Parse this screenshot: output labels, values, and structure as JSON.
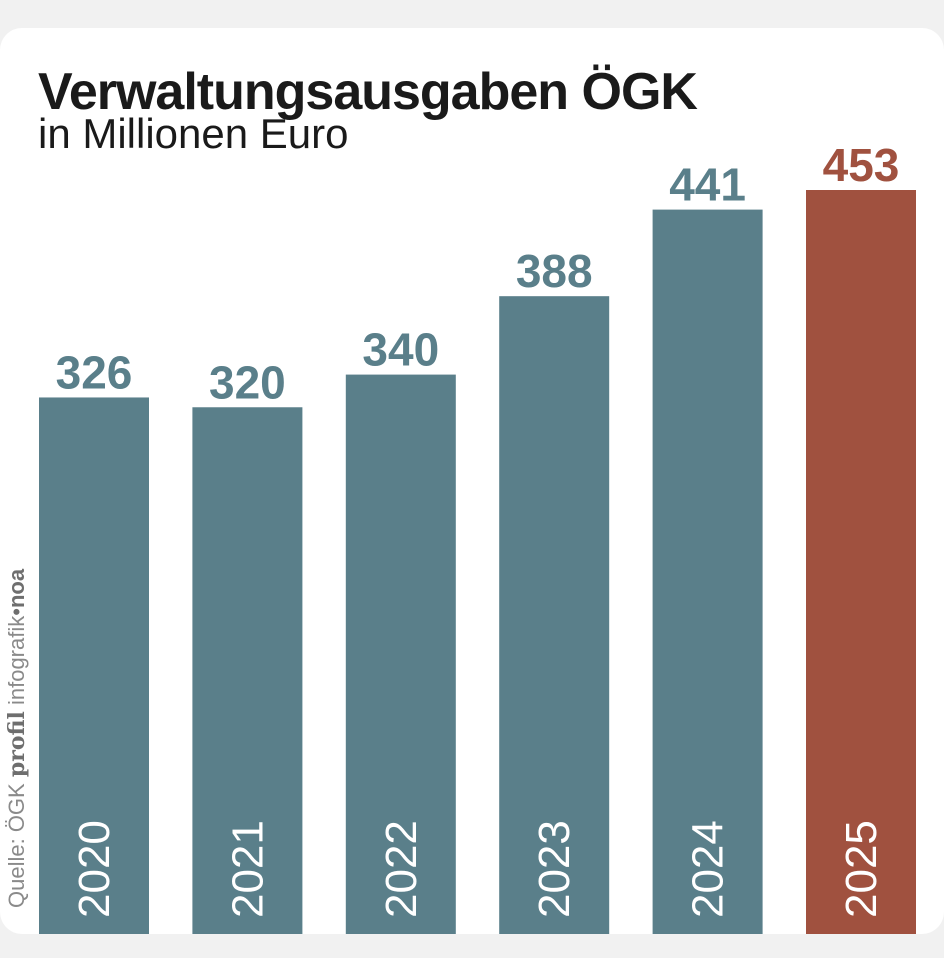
{
  "header": {
    "title": "Verwaltungsausgaben ÖGK",
    "subtitle": "in Millionen Euro"
  },
  "credit": {
    "source": "Quelle: ÖGK",
    "brand": "profil",
    "brand_suffix": "infografik",
    "separator": "•",
    "author": "noa"
  },
  "colors": {
    "bar_default": "#5a7f8a",
    "bar_highlight": "#a0513f",
    "value_default": "#5a7f8a",
    "value_highlight": "#a0513f"
  },
  "chart_data": {
    "type": "bar",
    "title": "Verwaltungsausgaben ÖGK",
    "subtitle": "in Millionen Euro",
    "xlabel": "",
    "ylabel": "",
    "categories": [
      "2020",
      "2021",
      "2022",
      "2023",
      "2024",
      "2025"
    ],
    "values": [
      326,
      320,
      340,
      388,
      441,
      453
    ],
    "highlight_category": "2025",
    "ylim": [
      0,
      453
    ],
    "grid": false,
    "legend": "none"
  }
}
